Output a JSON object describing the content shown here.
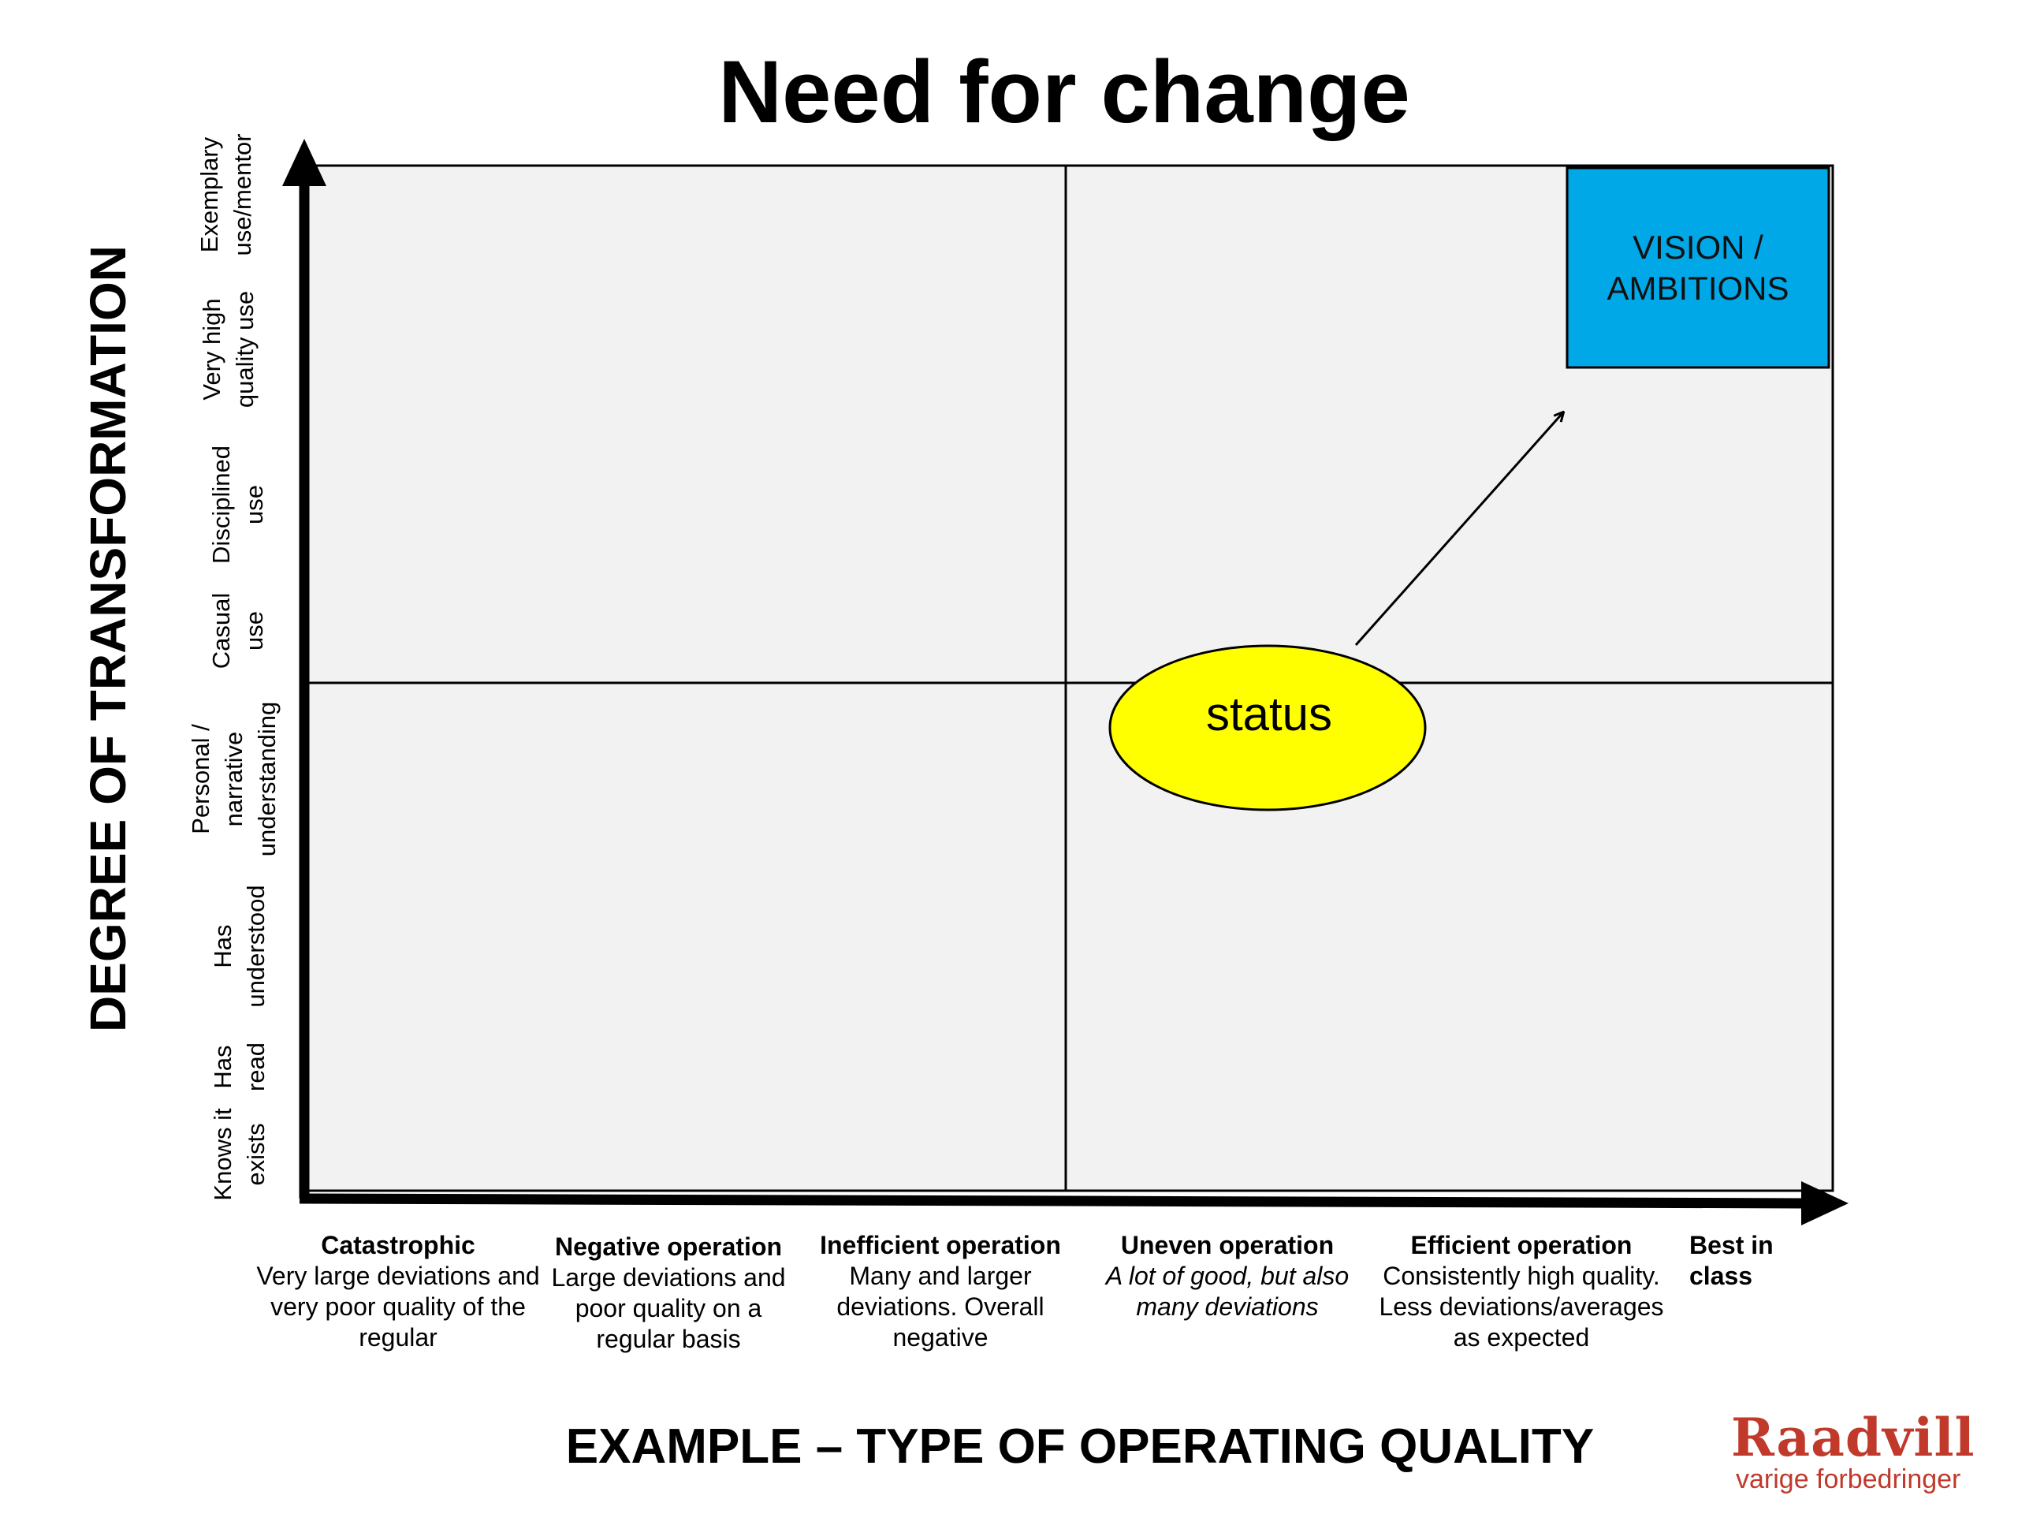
{
  "title": "Need for change",
  "y_axis": {
    "title": "DEGREE OF TRANSFORMATION",
    "levels": [
      "Knows it exists",
      "Has read",
      "Has understood",
      "Personal / narrative understanding",
      "Casual use",
      "Disciplined use",
      "Very high quality use",
      "Exemplary use/mentor"
    ]
  },
  "x_axis": {
    "title": "EXAMPLE – TYPE OF OPERATING QUALITY",
    "categories": [
      {
        "heading": "Catastrophic",
        "description": "Very large deviations and very poor quality of the regular"
      },
      {
        "heading": "Negative operation",
        "description": "Large deviations and poor quality on a regular basis"
      },
      {
        "heading": "Inefficient operation",
        "description": "Many and larger deviations. Overall negative"
      },
      {
        "heading": "Uneven operation",
        "description": "A lot of good, but also many deviations"
      },
      {
        "heading": "Efficient operation",
        "description": "Consistently high quality. Less deviations/averages as expected"
      },
      {
        "heading": "Best in class",
        "description": ""
      }
    ]
  },
  "diagram": {
    "status_label": "status",
    "vision_label": "VISION / AMBITIONS",
    "colors": {
      "status_fill": "#ffff00",
      "vision_fill": "#00a8e8",
      "quadrant_fill": "#f2f2f2"
    }
  },
  "logo": {
    "name": "Raadvill",
    "tagline": "varige forbedringer"
  }
}
